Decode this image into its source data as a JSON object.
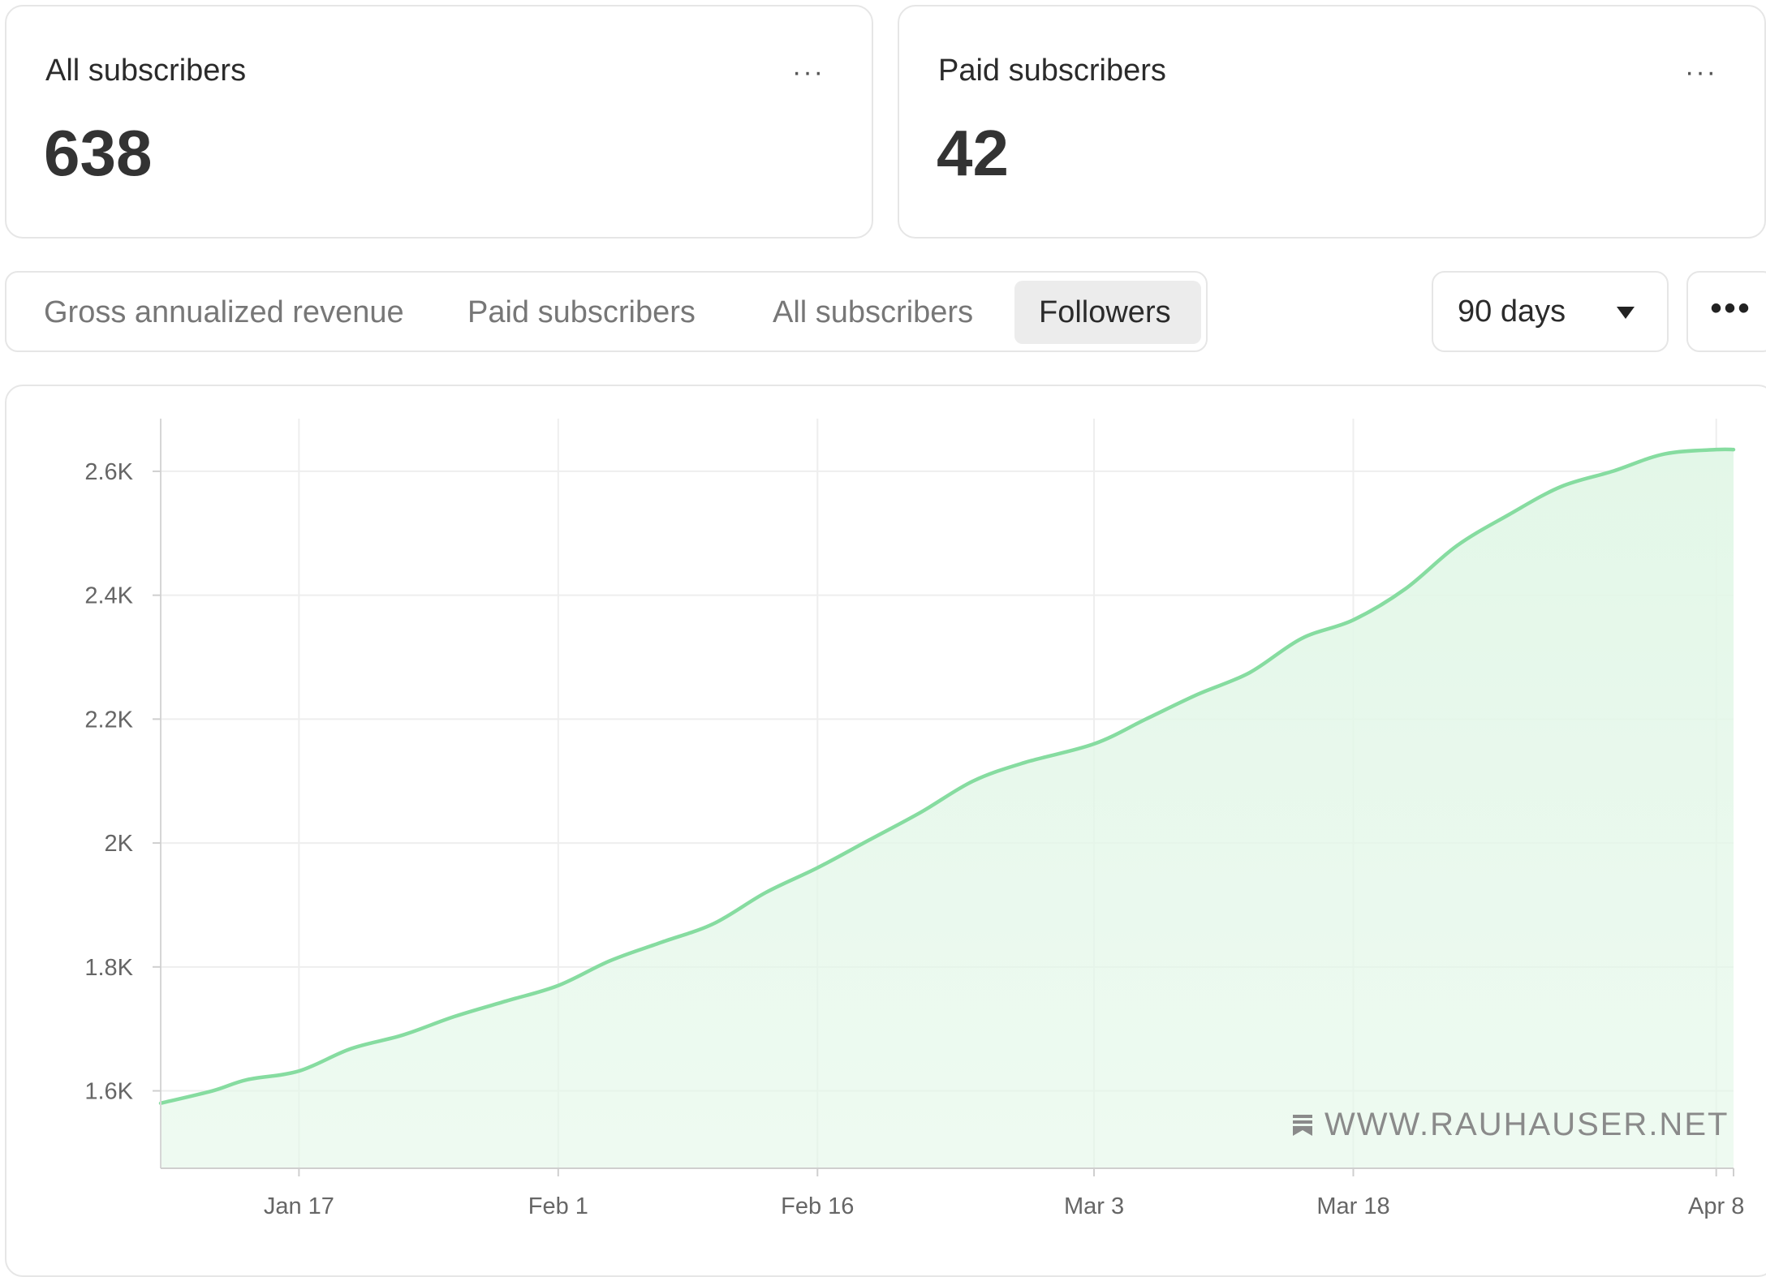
{
  "stats": [
    {
      "title": "All subscribers",
      "value": "638",
      "menu": "···"
    },
    {
      "title": "Paid subscribers",
      "value": "42",
      "menu": "···"
    }
  ],
  "tabs": [
    {
      "label": "Gross annualized revenue",
      "active": false
    },
    {
      "label": "Paid subscribers",
      "active": false
    },
    {
      "label": "All subscribers",
      "active": false
    },
    {
      "label": "Followers",
      "active": true
    }
  ],
  "range_select": {
    "selected": "90 days"
  },
  "more_menu": "•••",
  "watermark": {
    "text": "WWW.RAUHAUSER.NET",
    "icon": "bookmark-stack-icon"
  },
  "colors": {
    "line": "#86dca0",
    "area": "#e3f7e8",
    "grid": "#eeeeee"
  },
  "chart_data": {
    "type": "area",
    "title": "",
    "xlabel": "",
    "ylabel": "",
    "x_ticks": [
      "Jan 17",
      "Feb 1",
      "Feb 16",
      "Mar 3",
      "Mar 18",
      "Apr 8"
    ],
    "y_ticks": [
      "1.6K",
      "1.8K",
      "2K",
      "2.2K",
      "2.4K",
      "2.6K"
    ],
    "ylim": [
      1475,
      2685
    ],
    "grid": true,
    "series": [
      {
        "values": [
          {
            "x": "2024-01-09",
            "y": 1580
          },
          {
            "x": "2024-01-12",
            "y": 1600
          },
          {
            "x": "2024-01-14",
            "y": 1618
          },
          {
            "x": "2024-01-17",
            "y": 1632
          },
          {
            "x": "2024-01-20",
            "y": 1668
          },
          {
            "x": "2024-01-23",
            "y": 1690
          },
          {
            "x": "2024-01-26",
            "y": 1720
          },
          {
            "x": "2024-01-29",
            "y": 1745
          },
          {
            "x": "2024-02-01",
            "y": 1770
          },
          {
            "x": "2024-02-04",
            "y": 1810
          },
          {
            "x": "2024-02-07",
            "y": 1840
          },
          {
            "x": "2024-02-10",
            "y": 1870
          },
          {
            "x": "2024-02-13",
            "y": 1920
          },
          {
            "x": "2024-02-16",
            "y": 1960
          },
          {
            "x": "2024-02-19",
            "y": 2005
          },
          {
            "x": "2024-02-22",
            "y": 2050
          },
          {
            "x": "2024-02-25",
            "y": 2100
          },
          {
            "x": "2024-02-28",
            "y": 2130
          },
          {
            "x": "2024-03-03",
            "y": 2160
          },
          {
            "x": "2024-03-06",
            "y": 2200
          },
          {
            "x": "2024-03-09",
            "y": 2240
          },
          {
            "x": "2024-03-12",
            "y": 2275
          },
          {
            "x": "2024-03-15",
            "y": 2330
          },
          {
            "x": "2024-03-18",
            "y": 2360
          },
          {
            "x": "2024-03-21",
            "y": 2410
          },
          {
            "x": "2024-03-24",
            "y": 2480
          },
          {
            "x": "2024-03-27",
            "y": 2530
          },
          {
            "x": "2024-03-30",
            "y": 2575
          },
          {
            "x": "2024-04-02",
            "y": 2600
          },
          {
            "x": "2024-04-05",
            "y": 2628
          },
          {
            "x": "2024-04-08",
            "y": 2635
          },
          {
            "x": "2024-04-09",
            "y": 2635
          }
        ]
      }
    ]
  }
}
